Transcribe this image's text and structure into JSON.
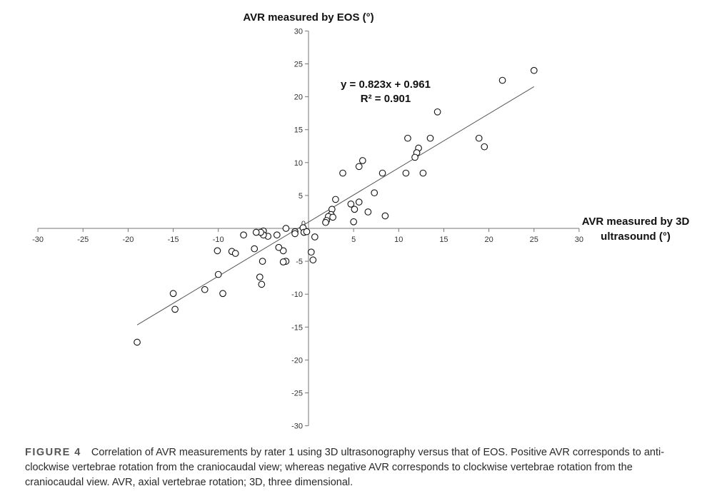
{
  "chart_data": {
    "type": "scatter",
    "xlabel_line1": "AVR measured by 3D",
    "xlabel_line2": "ultrasound (°)",
    "ylabel": "AVR measured by EOS (°)",
    "xlim": [
      -30,
      30
    ],
    "ylim": [
      -30,
      30
    ],
    "x_ticks": [
      -30,
      -25,
      -20,
      -15,
      -10,
      5,
      10,
      15,
      20,
      25,
      30
    ],
    "y_ticks": [
      30,
      25,
      20,
      15,
      10,
      5,
      -5,
      -10,
      -15,
      -20,
      -25,
      -30
    ],
    "origin_label": "0",
    "grid": false,
    "legend": "none",
    "trendline": {
      "slope": 0.823,
      "intercept": 0.961,
      "x_range": [
        -19,
        25
      ]
    },
    "equation": "y = 0.823x + 0.961",
    "r_squared": "R² = 0.901",
    "points": [
      [
        25,
        24
      ],
      [
        21.5,
        22.5
      ],
      [
        14.3,
        17.7
      ],
      [
        11,
        13.7
      ],
      [
        13.5,
        13.7
      ],
      [
        18.9,
        13.7
      ],
      [
        19.5,
        12.4
      ],
      [
        12.2,
        12.2
      ],
      [
        12,
        11.5
      ],
      [
        11.8,
        10.8
      ],
      [
        6,
        10.3
      ],
      [
        5.6,
        9.4
      ],
      [
        3.8,
        8.4
      ],
      [
        8.2,
        8.4
      ],
      [
        10.8,
        8.4
      ],
      [
        12.7,
        8.4
      ],
      [
        7.3,
        5.4
      ],
      [
        3,
        4.4
      ],
      [
        4.7,
        3.7
      ],
      [
        5.6,
        4
      ],
      [
        5.1,
        2.9
      ],
      [
        6.6,
        2.5
      ],
      [
        8.5,
        1.9
      ],
      [
        2.6,
        2.9
      ],
      [
        2.5,
        2.1
      ],
      [
        2.2,
        1.8
      ],
      [
        2.7,
        1.7
      ],
      [
        2,
        1.2
      ],
      [
        1.9,
        0.9
      ],
      [
        5,
        1
      ],
      [
        0.7,
        -1.3
      ],
      [
        -0.6,
        0.1
      ],
      [
        -0.5,
        -0.6
      ],
      [
        -1.5,
        -0.5
      ],
      [
        -0.2,
        -0.5
      ],
      [
        -1.5,
        -0.8
      ],
      [
        -2.5,
        0
      ],
      [
        -3.5,
        -1
      ],
      [
        -4.5,
        -1.2
      ],
      [
        -5,
        -0.4
      ],
      [
        -5,
        -1
      ],
      [
        -5.3,
        -0.6
      ],
      [
        -5.8,
        -0.6
      ],
      [
        -7.2,
        -1
      ],
      [
        -10.1,
        -3.4
      ],
      [
        -8.5,
        -3.5
      ],
      [
        -8.1,
        -3.8
      ],
      [
        -6,
        -3.1
      ],
      [
        -5.1,
        -5
      ],
      [
        -2.8,
        -3.4
      ],
      [
        -3.3,
        -2.9
      ],
      [
        -2.5,
        -5
      ],
      [
        -2.8,
        -5.1
      ],
      [
        0.5,
        -4.8
      ],
      [
        0.3,
        -3.6
      ],
      [
        -10,
        -7
      ],
      [
        -5.4,
        -7.4
      ],
      [
        -5.2,
        -8.5
      ],
      [
        -9.5,
        -9.9
      ],
      [
        -11.5,
        -9.3
      ],
      [
        -15,
        -9.9
      ],
      [
        -14.8,
        -12.3
      ],
      [
        -19,
        -17.3
      ]
    ]
  },
  "caption": {
    "label": "FIGURE 4",
    "text": "Correlation of AVR measurements by rater 1 using 3D ultrasonography versus that of EOS. Positive AVR corresponds to anti-clockwise vertebrae rotation from the craniocaudal view; whereas negative AVR corresponds to clockwise vertebrae rotation from the craniocaudal view. AVR, axial vertebrae rotation; 3D, three dimensional."
  }
}
